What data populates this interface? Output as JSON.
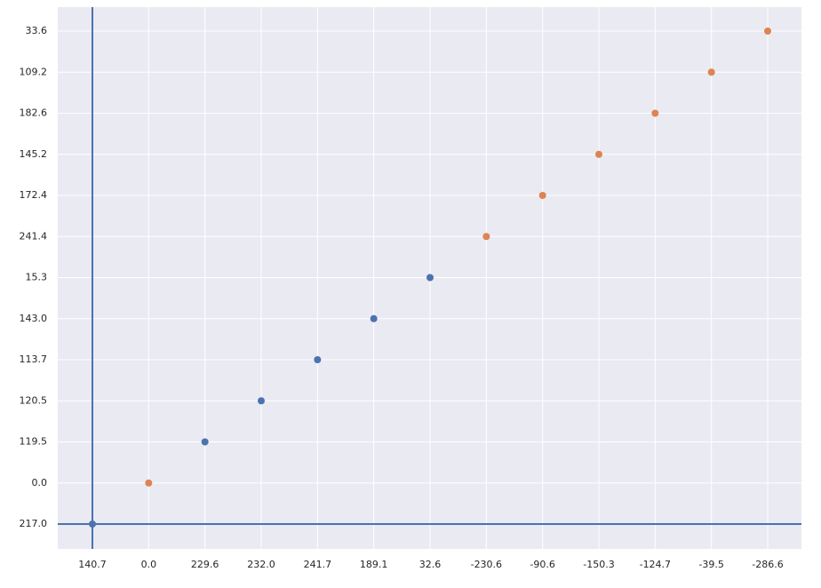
{
  "chart_data": {
    "type": "scatter",
    "x_categories": [
      "140.7",
      "0.0",
      "229.6",
      "232.0",
      "241.7",
      "189.1",
      "32.6",
      "-230.6",
      "-90.6",
      "-150.3",
      "-124.7",
      "-39.5",
      "-286.6"
    ],
    "y_categories": [
      "217.0",
      "0.0",
      "119.5",
      "120.5",
      "113.7",
      "143.0",
      "15.3",
      "241.4",
      "172.4",
      "145.2",
      "182.6",
      "109.2",
      "33.6"
    ],
    "series": [
      {
        "color": "#4c72b0",
        "x": [
          "140.7",
          "229.6",
          "232.0",
          "241.7",
          "189.1",
          "32.6"
        ],
        "y": [
          "217.0",
          "119.5",
          "120.5",
          "113.7",
          "143.0",
          "15.3"
        ]
      },
      {
        "color": "#dd8452",
        "x": [
          "0.0",
          "-230.6",
          "-90.6",
          "-150.3",
          "-124.7",
          "-39.5",
          "-286.6"
        ],
        "y": [
          "0.0",
          "241.4",
          "172.4",
          "145.2",
          "182.6",
          "109.2",
          "33.6"
        ]
      }
    ],
    "axhline": "217.0",
    "axvline": "140.7",
    "line_color": "#4c72b0",
    "grid": true
  }
}
